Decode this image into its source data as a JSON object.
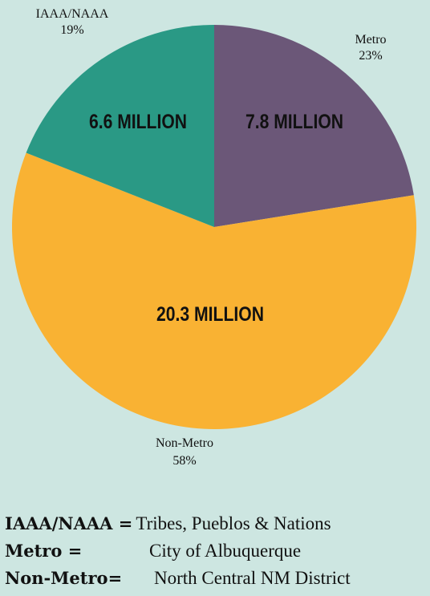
{
  "chart_data": {
    "type": "pie",
    "slices": [
      {
        "name": "Metro",
        "percent_label": "23%",
        "value": 7.8,
        "value_label": "7.8 MILLION",
        "color": "#6b5778"
      },
      {
        "name": "Non-Metro",
        "percent_label": "58%",
        "value": 20.3,
        "value_label": "20.3 MILLION",
        "color": "#f9b233"
      },
      {
        "name": "IAAA/NAAA",
        "percent_label": "19%",
        "value": 6.6,
        "value_label": "6.6 MILLION",
        "color": "#2a9985"
      }
    ],
    "start": "12 o'clock",
    "direction": "clockwise"
  },
  "legend": [
    {
      "term": "IAAA/NAAA =",
      "definition": "Tribes, Pueblos & Nations"
    },
    {
      "term": "Metro =",
      "definition": "City of Albuquerque"
    },
    {
      "term": "Non-Metro=",
      "definition": "North Central NM District"
    }
  ]
}
